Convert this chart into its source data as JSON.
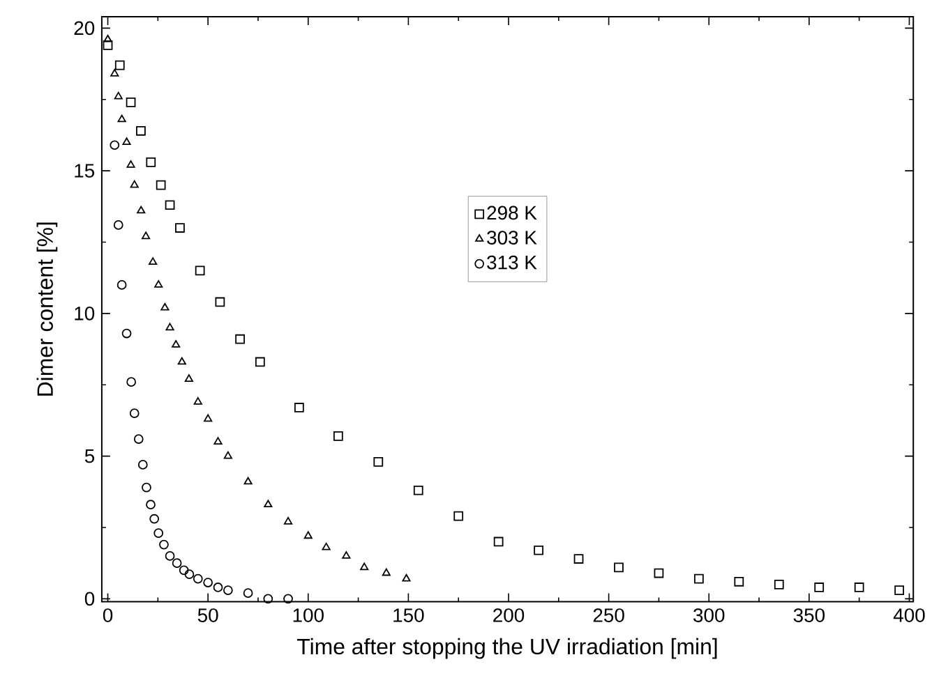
{
  "chart_data": {
    "type": "scatter",
    "xlabel": "Time after stopping the UV irradiation [min]",
    "ylabel": "Dimer content [%]",
    "xlim": [
      -3,
      402
    ],
    "ylim": [
      -0.1,
      20.4
    ],
    "xticks": [
      0,
      50,
      100,
      150,
      200,
      250,
      300,
      350,
      400
    ],
    "yticks": [
      0,
      5,
      10,
      15,
      20
    ],
    "grid": false,
    "legend": "center",
    "series": [
      {
        "name": "298 K",
        "color": "#000000",
        "marker": "square",
        "x": [
          0,
          6,
          11.5,
          16.5,
          21.5,
          26.5,
          31,
          36,
          46,
          56,
          66,
          76,
          95.5,
          115,
          135,
          155,
          175,
          195,
          215,
          235,
          255,
          275,
          295,
          315,
          335,
          355,
          375,
          395
        ],
        "values": [
          19.4,
          18.7,
          17.4,
          16.4,
          15.3,
          14.5,
          13.8,
          13.0,
          11.5,
          10.4,
          9.1,
          8.3,
          6.7,
          5.7,
          4.8,
          3.8,
          2.9,
          2.0,
          1.7,
          1.4,
          1.1,
          0.9,
          0.7,
          0.6,
          0.5,
          0.4,
          0.4,
          0.3
        ]
      },
      {
        "name": "303 K",
        "color": "#000000",
        "marker": "triangle",
        "x": [
          0,
          3.4,
          5.3,
          7,
          9.4,
          11.5,
          13.3,
          16.6,
          19,
          22.5,
          25.3,
          28.5,
          31,
          34,
          37,
          40.5,
          45,
          50,
          55,
          60,
          70,
          80,
          90,
          100,
          109,
          119,
          128,
          139,
          149
        ],
        "values": [
          19.6,
          18.4,
          17.6,
          16.8,
          16.0,
          15.2,
          14.5,
          13.6,
          12.7,
          11.8,
          11.0,
          10.2,
          9.5,
          8.9,
          8.3,
          7.7,
          6.9,
          6.3,
          5.5,
          5.0,
          4.1,
          3.3,
          2.7,
          2.2,
          1.8,
          1.5,
          1.1,
          0.9,
          0.7
        ]
      },
      {
        "name": "313 K",
        "color": "#000000",
        "marker": "circle",
        "x": [
          3.4,
          5.3,
          7,
          9.4,
          11.7,
          13.3,
          15.4,
          17.5,
          19.3,
          21.4,
          23.2,
          25.3,
          28,
          31,
          34.5,
          38,
          40.7,
          45,
          50,
          55,
          60,
          70,
          80,
          90
        ],
        "values": [
          15.9,
          13.1,
          11.0,
          9.3,
          7.6,
          6.5,
          5.6,
          4.7,
          3.9,
          3.3,
          2.8,
          2.3,
          1.9,
          1.5,
          1.25,
          1.0,
          0.86,
          0.7,
          0.57,
          0.4,
          0.3,
          0.2,
          0.0,
          0.0
        ]
      }
    ]
  }
}
